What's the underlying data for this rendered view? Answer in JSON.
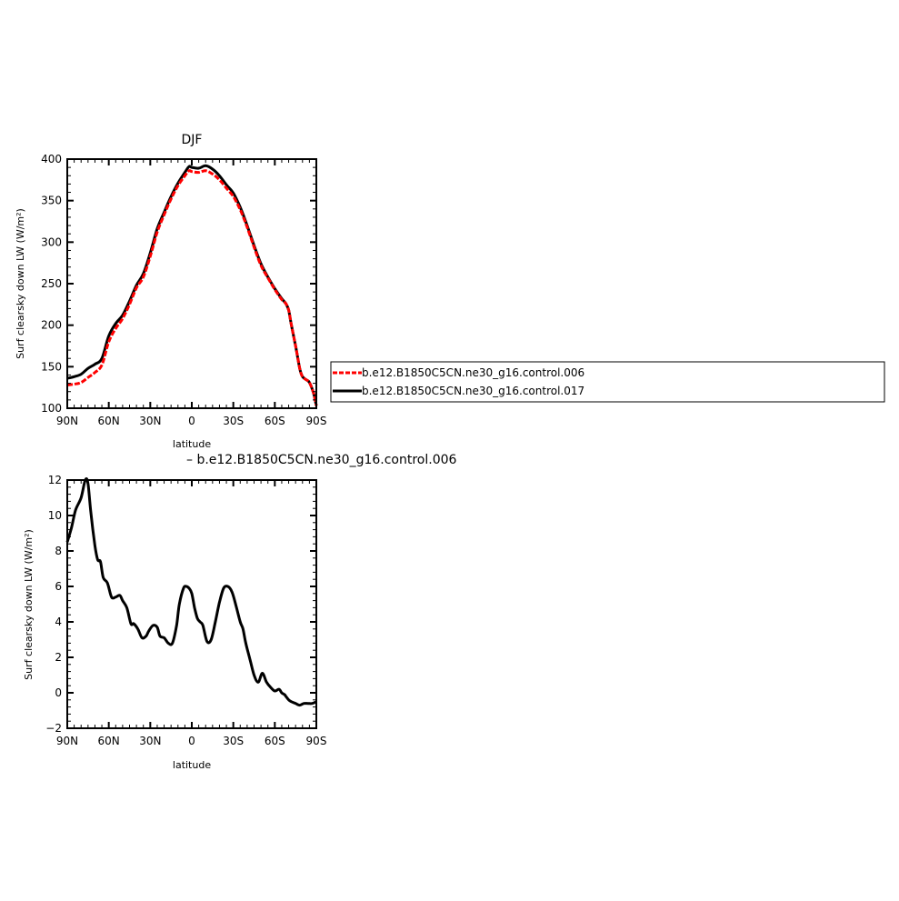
{
  "top_chart_title": "DJF",
  "bottom_chart_subtitle": "– b.e12.B1850C5CN.ne30_g16.control.006",
  "legend": {
    "entries": [
      {
        "label": "b.e12.B1850C5CN.ne30_g16.control.006",
        "color": "#ff0000",
        "dashed": true
      },
      {
        "label": "b.e12.B1850C5CN.ne30_g16.control.017",
        "color": "#000000",
        "dashed": false
      }
    ]
  },
  "chart_data": [
    {
      "type": "line",
      "title": "DJF",
      "xlabel": "latitude",
      "ylabel": "Surf clearsky down LW (W/m²)",
      "xlim": [
        90,
        -90
      ],
      "ylim": [
        100,
        400
      ],
      "xticks": [
        90,
        60,
        30,
        0,
        -30,
        -60,
        -90
      ],
      "xtick_labels": [
        "90N",
        "60N",
        "30N",
        "0",
        "30S",
        "60S",
        "90S"
      ],
      "yticks": [
        100,
        150,
        200,
        250,
        300,
        350,
        400
      ],
      "ytick_labels": [
        "100",
        "150",
        "200",
        "250",
        "300",
        "350",
        "400"
      ],
      "grid": false,
      "legend_position": "right",
      "series": [
        {
          "name": "b.e12.B1850C5CN.ne30_g16.control.006",
          "color": "#ff0000",
          "dashed": true,
          "x": [
            90,
            85,
            80,
            75,
            70,
            65,
            60,
            55,
            50,
            45,
            40,
            35,
            30,
            25,
            20,
            15,
            10,
            5,
            2,
            0,
            -5,
            -10,
            -15,
            -20,
            -25,
            -30,
            -35,
            -40,
            -45,
            -50,
            -55,
            -60,
            -65,
            -68,
            -70,
            -72,
            -75,
            -78,
            -80,
            -83,
            -85,
            -88,
            -90
          ],
          "y": [
            128,
            129,
            131,
            137,
            143,
            152,
            180,
            196,
            208,
            225,
            245,
            258,
            283,
            312,
            333,
            352,
            368,
            380,
            386,
            385,
            384,
            386,
            382,
            375,
            365,
            355,
            339,
            318,
            294,
            272,
            257,
            243,
            231,
            226,
            218,
            200,
            175,
            148,
            138,
            134,
            131,
            118,
            103
          ]
        },
        {
          "name": "b.e12.B1850C5CN.ne30_g16.control.017",
          "color": "#000000",
          "dashed": false,
          "x": [
            90,
            85,
            80,
            75,
            70,
            65,
            60,
            55,
            50,
            45,
            40,
            35,
            30,
            25,
            20,
            15,
            10,
            5,
            2,
            0,
            -5,
            -10,
            -15,
            -20,
            -25,
            -30,
            -35,
            -40,
            -45,
            -50,
            -55,
            -60,
            -65,
            -68,
            -70,
            -72,
            -75,
            -78,
            -80,
            -83,
            -85,
            -88,
            -90
          ],
          "y": [
            136,
            138,
            141,
            148,
            153,
            160,
            187,
            202,
            212,
            229,
            248,
            262,
            287,
            316,
            336,
            355,
            371,
            384,
            391,
            390,
            389,
            392,
            388,
            380,
            369,
            359,
            342,
            320,
            296,
            274,
            258,
            244,
            232,
            226,
            218,
            200,
            175,
            148,
            138,
            134,
            131,
            118,
            103
          ]
        }
      ]
    },
    {
      "type": "line",
      "xlabel": "latitude",
      "ylabel": "Surf clearsky down LW (W/m²)",
      "xlim": [
        90,
        -90
      ],
      "ylim": [
        -2,
        12
      ],
      "xticks": [
        90,
        60,
        30,
        0,
        -30,
        -60,
        -90
      ],
      "xtick_labels": [
        "90N",
        "60N",
        "30N",
        "0",
        "30S",
        "60S",
        "90S"
      ],
      "yticks": [
        -2,
        0,
        2,
        4,
        6,
        8,
        10,
        12
      ],
      "ytick_labels": [
        "−2",
        "0",
        "2",
        "4",
        "6",
        "8",
        "10",
        "12"
      ],
      "grid": false,
      "series": [
        {
          "color": "#000000",
          "dashed": false,
          "x": [
            90,
            87,
            84,
            80,
            77,
            75,
            73,
            70,
            68,
            66,
            64,
            61,
            58,
            55,
            52,
            50,
            47,
            44,
            42,
            39,
            36,
            33,
            31,
            28,
            25,
            23,
            20,
            17,
            14,
            11,
            9,
            6,
            4,
            2,
            0,
            -2,
            -4,
            -6,
            -8,
            -11,
            -14,
            -17,
            -20,
            -23,
            -26,
            -29,
            -32,
            -35,
            -37,
            -39,
            -42,
            -45,
            -48,
            -51,
            -54,
            -57,
            -60,
            -63,
            -65,
            -67,
            -68,
            -70,
            -72,
            -75,
            -78,
            -81,
            -84,
            -87,
            -90
          ],
          "y": [
            8.5,
            9.3,
            10.3,
            11.0,
            12.0,
            11.8,
            10.2,
            8.3,
            7.5,
            7.4,
            6.5,
            6.2,
            5.4,
            5.4,
            5.5,
            5.2,
            4.8,
            3.9,
            3.9,
            3.6,
            3.1,
            3.2,
            3.5,
            3.8,
            3.7,
            3.2,
            3.1,
            2.8,
            2.8,
            3.8,
            5.0,
            5.9,
            6.0,
            5.9,
            5.6,
            4.8,
            4.2,
            4.0,
            3.8,
            2.9,
            3.0,
            4.0,
            5.1,
            5.9,
            6.0,
            5.7,
            4.9,
            4.0,
            3.6,
            2.8,
            1.9,
            1.0,
            0.6,
            1.1,
            0.6,
            0.3,
            0.1,
            0.2,
            0.0,
            -0.1,
            -0.2,
            -0.4,
            -0.5,
            -0.6,
            -0.7,
            -0.6,
            -0.6,
            -0.6,
            -0.5
          ]
        }
      ]
    }
  ]
}
